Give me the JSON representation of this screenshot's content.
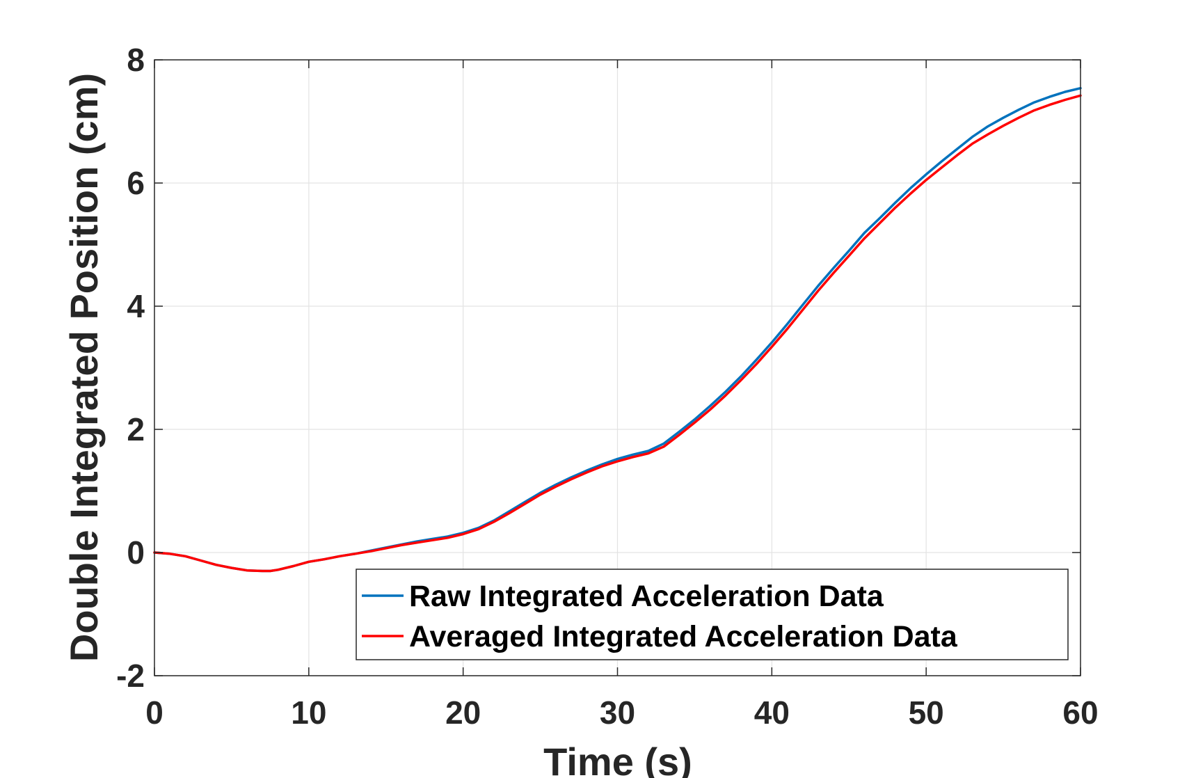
{
  "chart_data": {
    "type": "line",
    "title": "",
    "xlabel": "Time (s)",
    "ylabel": "Double Integrated Position (cm)",
    "xlim": [
      0,
      60
    ],
    "ylim": [
      -2,
      8
    ],
    "xticks": [
      0,
      10,
      20,
      30,
      40,
      50,
      60
    ],
    "yticks": [
      -2,
      0,
      2,
      4,
      6,
      8
    ],
    "xtick_labels": [
      "0",
      "10",
      "20",
      "30",
      "40",
      "50",
      "60"
    ],
    "ytick_labels": [
      "-2",
      "0",
      "2",
      "4",
      "6",
      "8"
    ],
    "grid": true,
    "legend_position": "bottom-right",
    "series": [
      {
        "name": "Raw Integrated Acceleration Data",
        "color": "#0072BD",
        "x": [
          0,
          1,
          2,
          3,
          4,
          5,
          6,
          7,
          7.5,
          8,
          9,
          10,
          11,
          12,
          13,
          14,
          15,
          16,
          17,
          18,
          19,
          20,
          21,
          22,
          23,
          24,
          25,
          26,
          27,
          28,
          29,
          30,
          31,
          32,
          33,
          34,
          35,
          36,
          37,
          38,
          39,
          40,
          41,
          42,
          43,
          44,
          45,
          46,
          47,
          48,
          49,
          50,
          51,
          52,
          53,
          54,
          55,
          56,
          57,
          58,
          59,
          60
        ],
        "y": [
          0,
          -0.02,
          -0.06,
          -0.13,
          -0.2,
          -0.25,
          -0.29,
          -0.3,
          -0.3,
          -0.28,
          -0.22,
          -0.15,
          -0.11,
          -0.06,
          -0.02,
          0.03,
          0.08,
          0.13,
          0.18,
          0.22,
          0.26,
          0.32,
          0.4,
          0.52,
          0.67,
          0.82,
          0.97,
          1.1,
          1.22,
          1.33,
          1.43,
          1.52,
          1.59,
          1.65,
          1.77,
          1.96,
          2.16,
          2.38,
          2.61,
          2.86,
          3.13,
          3.41,
          3.71,
          4.02,
          4.33,
          4.62,
          4.9,
          5.19,
          5.43,
          5.68,
          5.92,
          6.14,
          6.35,
          6.55,
          6.75,
          6.92,
          7.06,
          7.19,
          7.31,
          7.4,
          7.48,
          7.54
        ]
      },
      {
        "name": "Averaged Integrated Acceleration Data",
        "color": "#FF0000",
        "x": [
          0,
          1,
          2,
          3,
          4,
          5,
          6,
          7,
          7.5,
          8,
          9,
          10,
          11,
          12,
          13,
          14,
          15,
          16,
          17,
          18,
          19,
          20,
          21,
          22,
          23,
          24,
          25,
          26,
          27,
          28,
          29,
          30,
          31,
          32,
          33,
          34,
          35,
          36,
          37,
          38,
          39,
          40,
          41,
          42,
          43,
          44,
          45,
          46,
          47,
          48,
          49,
          50,
          51,
          52,
          53,
          54,
          55,
          56,
          57,
          58,
          59,
          60
        ],
        "y": [
          0,
          -0.02,
          -0.06,
          -0.13,
          -0.2,
          -0.25,
          -0.29,
          -0.3,
          -0.3,
          -0.28,
          -0.22,
          -0.15,
          -0.11,
          -0.06,
          -0.02,
          0.02,
          0.07,
          0.12,
          0.16,
          0.2,
          0.24,
          0.3,
          0.38,
          0.5,
          0.64,
          0.79,
          0.94,
          1.07,
          1.19,
          1.3,
          1.4,
          1.48,
          1.55,
          1.61,
          1.72,
          1.91,
          2.11,
          2.32,
          2.55,
          2.8,
          3.06,
          3.34,
          3.63,
          3.94,
          4.25,
          4.54,
          4.82,
          5.1,
          5.35,
          5.6,
          5.83,
          6.05,
          6.25,
          6.45,
          6.64,
          6.79,
          6.93,
          7.06,
          7.18,
          7.27,
          7.35,
          7.42
        ]
      }
    ]
  }
}
